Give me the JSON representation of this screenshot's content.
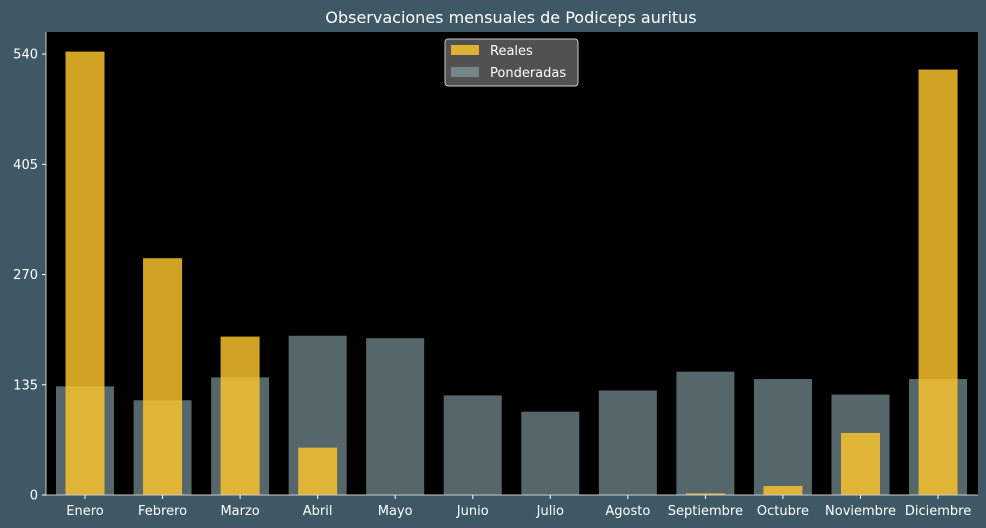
{
  "chart_data": {
    "type": "bar",
    "title": "Observaciones mensuales de Podiceps auritus",
    "xlabel": "",
    "ylabel": "",
    "categories": [
      "Enero",
      "Febrero",
      "Marzo",
      "Abril",
      "Mayo",
      "Junio",
      "Julio",
      "Agosto",
      "Septiembre",
      "Octubre",
      "Noviembre",
      "Diciembre"
    ],
    "series": [
      {
        "name": "Reales",
        "color": "#ffc72c",
        "values": [
          543,
          290,
          194,
          58,
          0,
          0,
          0,
          0,
          2,
          11,
          76,
          521
        ]
      },
      {
        "name": "Ponderadas",
        "color": "#8aa6ad",
        "values": [
          133,
          116,
          144,
          195,
          192,
          122,
          102,
          128,
          151,
          142,
          123,
          142
        ]
      }
    ],
    "ylim": [
      0,
      567
    ],
    "yticks": [
      0,
      135,
      270,
      405,
      540
    ],
    "grid": false,
    "legend_position": "top-center",
    "colors": {
      "page_background": "#3f5865",
      "plot_background": "#000000",
      "text": "#ffffff",
      "legend_background": "#555555"
    }
  }
}
